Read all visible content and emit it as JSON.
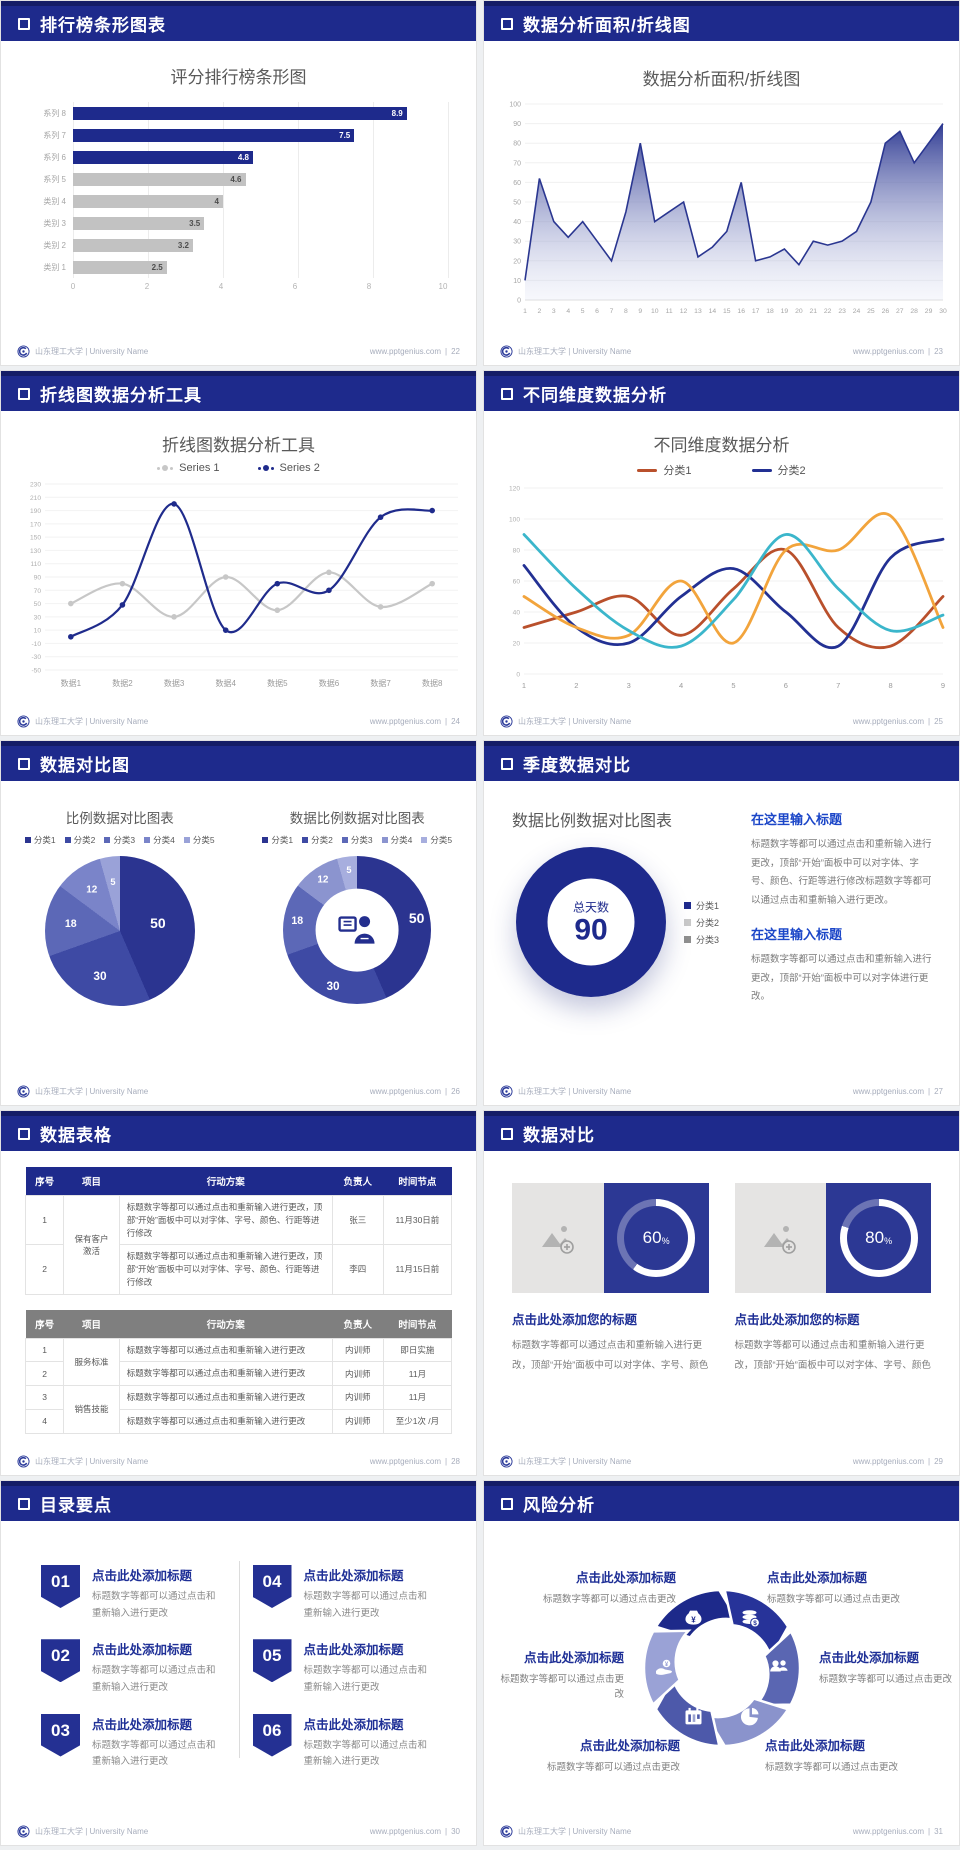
{
  "footer": {
    "org_label": "山东理工大学 | University Name",
    "site": "www.pptgenius.com",
    "separator": "|"
  },
  "slides": [
    {
      "header": "排行榜条形图表",
      "page": "22"
    },
    {
      "header": "数据分析面积/折线图",
      "page": "23"
    },
    {
      "header": "折线图数据分析工具",
      "page": "24"
    },
    {
      "header": "不同维度数据分析",
      "page": "25"
    },
    {
      "header": "数据对比图",
      "page": "26"
    },
    {
      "header": "季度数据对比",
      "page": "27",
      "blocks": [
        {
          "heading": "在这里输入标题",
          "body": "标题数字等都可以通过点击和重新输入进行更改，顶部“开始”面板中可以对字体、字号、颜色、行距等进行修改标题数字等都可以通过点击和重新输入进行更改。"
        },
        {
          "heading": "在这里输入标题",
          "body": "标题数字等都可以通过点击和重新输入进行更改，顶部“开始”面板中可以对字体进行更改。"
        }
      ]
    },
    {
      "header": "数据表格",
      "page": "28",
      "tables": [
        {
          "header_bg": "#1e2a8c",
          "headers": [
            "序号",
            "项目",
            "行动方案",
            "负责人",
            "时间节点"
          ],
          "rows": [
            [
              "1",
              {
                "text": "保有客户激活",
                "rowspan": 2
              },
              "标题数字等都可以通过点击和重新输入进行更改，顶部“开始”面板中可以对字体、字号、颜色、行距等进行修改",
              "张三",
              "11月30日前"
            ],
            [
              "2",
              null,
              "标题数字等都可以通过点击和重新输入进行更改，顶部“开始”面板中可以对字体、字号、颜色、行距等进行修改",
              "李四",
              "11月15日前"
            ]
          ]
        },
        {
          "header_bg": "#7f7f7f",
          "headers": [
            "序号",
            "项目",
            "行动方案",
            "负责人",
            "时间节点"
          ],
          "rows": [
            [
              "1",
              {
                "text": "服务标准",
                "rowspan": 2
              },
              "标题数字等都可以通过点击和重新输入进行更改",
              "内训师",
              "即日实施"
            ],
            [
              "2",
              null,
              "标题数字等都可以通过点击和重新输入进行更改",
              "内训师",
              "11月"
            ],
            [
              "3",
              {
                "text": "销售技能",
                "rowspan": 2
              },
              "标题数字等都可以通过点击和重新输入进行更改",
              "内训师",
              "11月"
            ],
            [
              "4",
              null,
              "标题数字等都可以通过点击和重新输入进行更改",
              "内训师",
              "至少1次 /月"
            ]
          ]
        }
      ]
    },
    {
      "header": "数据对比",
      "page": "29",
      "cards": [
        {
          "percent": "60",
          "unit": "%",
          "heading": "点击此处添加您的标题",
          "body": "标题数字等都可以通过点击和重新输入进行更改，顶部“开始”面板中可以对字体、字号、颜色"
        },
        {
          "percent": "80",
          "unit": "%",
          "heading": "点击此处添加您的标题",
          "body": "标题数字等都可以通过点击和重新输入进行更改，顶部“开始”面板中可以对字体、字号、颜色"
        }
      ]
    },
    {
      "header": "目录要点",
      "page": "30",
      "items": [
        {
          "num": "01",
          "heading": "点击此处添加标题",
          "body": "标题数字等都可以通过点击和重新输入进行更改"
        },
        {
          "num": "02",
          "heading": "点击此处添加标题",
          "body": "标题数字等都可以通过点击和重新输入进行更改"
        },
        {
          "num": "03",
          "heading": "点击此处添加标题",
          "body": "标题数字等都可以通过点击和重新输入进行更改"
        },
        {
          "num": "04",
          "heading": "点击此处添加标题",
          "body": "标题数字等都可以通过点击和重新输入进行更改"
        },
        {
          "num": "05",
          "heading": "点击此处添加标题",
          "body": "标题数字等都可以通过点击和重新输入进行更改"
        },
        {
          "num": "06",
          "heading": "点击此处添加标题",
          "body": "标题数字等都可以通过点击和重新输入进行更改"
        }
      ]
    },
    {
      "header": "风险分析",
      "page": "31",
      "labels": [
        {
          "heading": "点击此处添加标题",
          "body": "标题数字等都可以通过点击更改"
        },
        {
          "heading": "点击此处添加标题",
          "body": "标题数字等都可以通过点击更改"
        },
        {
          "heading": "点击此处添加标题",
          "body": "标题数字等都可以通过点击更改"
        },
        {
          "heading": "点击此处添加标题",
          "body": "标题数字等都可以通过点击更改"
        },
        {
          "heading": "点击此处添加标题",
          "body": "标题数字等都可以通过点击更改"
        },
        {
          "heading": "点击此处添加标题",
          "body": "标题数字等都可以通过点击更改"
        }
      ],
      "icons": [
        "money-bag-icon",
        "coins-icon",
        "people-icon",
        "pie-chart-icon",
        "calendar-icon",
        "hand-money-icon"
      ],
      "wheel_colors": [
        "#1d298a",
        "#273399",
        "#5a66b2",
        "#8a93cc",
        "#4d59aa",
        "#9aa2d6"
      ]
    }
  ],
  "chart_data": [
    {
      "type": "bar",
      "orientation": "horizontal",
      "title": "评分排行榜条形图",
      "categories": [
        "系列 8",
        "系列 7",
        "系列 6",
        "系列 5",
        "类别 4",
        "类别 3",
        "类别 2",
        "类别 1"
      ],
      "values": [
        8.9,
        7.5,
        4.8,
        4.6,
        4,
        3.5,
        3.2,
        2.5
      ],
      "bar_colors": [
        "#1e2a8c",
        "#1e2a8c",
        "#1e2a8c",
        "#c2c2c2",
        "#c2c2c2",
        "#c2c2c2",
        "#c2c2c2",
        "#c2c2c2"
      ],
      "value_label_colors": [
        "#ffffff",
        "#ffffff",
        "#ffffff",
        "#4d4d4d",
        "#4d4d4d",
        "#4d4d4d",
        "#4d4d4d",
        "#4d4d4d"
      ],
      "xlim": [
        0,
        10
      ],
      "xticks": [
        0,
        2,
        4,
        6,
        8,
        10
      ],
      "grid": true
    },
    {
      "type": "area",
      "title": "数据分析面积/折线图",
      "x": [
        1,
        2,
        3,
        4,
        5,
        6,
        7,
        8,
        9,
        10,
        11,
        12,
        13,
        14,
        15,
        16,
        17,
        18,
        19,
        20,
        21,
        22,
        23,
        24,
        25,
        26,
        27,
        28,
        29,
        30
      ],
      "values": [
        10,
        62,
        40,
        32,
        40,
        30,
        20,
        45,
        80,
        40,
        45,
        50,
        22,
        27,
        35,
        60,
        20,
        22,
        26,
        18,
        30,
        28,
        30,
        35,
        50,
        80,
        86,
        70,
        80,
        90
      ],
      "ylim": [
        0,
        100
      ],
      "yticks": [
        0,
        10,
        20,
        30,
        40,
        50,
        60,
        70,
        80,
        90,
        100
      ],
      "color": "#2a3690",
      "grid": true
    },
    {
      "type": "line",
      "title": "折线图数据分析工具",
      "categories": [
        "数据1",
        "数据2",
        "数据3",
        "数据4",
        "数据5",
        "数据6",
        "数据7",
        "数据8"
      ],
      "series": [
        {
          "name": "Series 1",
          "color": "#c7c7c7",
          "values": [
            50,
            80,
            30,
            90,
            40,
            97,
            45,
            80
          ]
        },
        {
          "name": "Series 2",
          "color": "#1f2b8c",
          "values": [
            0,
            48,
            200,
            10,
            80,
            70,
            180,
            190
          ]
        }
      ],
      "ylim": [
        -50,
        230
      ],
      "yticks": [
        230,
        210,
        190,
        170,
        150,
        130,
        110,
        90,
        70,
        50,
        30,
        10,
        -10,
        -30,
        -50
      ],
      "smooth": true,
      "markers": true,
      "legend_position": "top",
      "grid": true
    },
    {
      "type": "line",
      "title": "不同维度数据分析",
      "x": [
        1,
        2,
        3,
        4,
        5,
        6,
        7,
        8,
        9
      ],
      "legend": [
        {
          "label": "分类1",
          "color": "#b9502c"
        },
        {
          "label": "分类2",
          "color": "#223093"
        }
      ],
      "series": [
        {
          "name": "分类1",
          "color": "#b9502c",
          "values": [
            30,
            40,
            50,
            25,
            55,
            80,
            30,
            18,
            50
          ]
        },
        {
          "name": "分类2",
          "color": "#223093",
          "values": [
            70,
            30,
            20,
            50,
            68,
            40,
            18,
            75,
            87
          ]
        },
        {
          "name": "",
          "color": "#f2a43c",
          "values": [
            50,
            30,
            25,
            60,
            20,
            80,
            80,
            102,
            30
          ]
        },
        {
          "name": "",
          "color": "#3bb6cb",
          "values": [
            90,
            55,
            28,
            18,
            48,
            90,
            55,
            28,
            38
          ]
        }
      ],
      "ylim": [
        0,
        120
      ],
      "yticks": [
        0,
        20,
        40,
        60,
        80,
        100,
        120
      ],
      "smooth": true,
      "markers": false,
      "legend_position": "top",
      "grid": true
    },
    {
      "type": "pie",
      "title": "比例数据对比图表",
      "labels": [
        "分类1",
        "分类2",
        "分类3",
        "分类4",
        "分类5"
      ],
      "values": [
        50,
        30,
        18,
        12,
        5
      ],
      "colors": [
        "#2b3490",
        "#3e4aa4",
        "#5c68b7",
        "#7a84c9",
        "#9aa2d8"
      ]
    },
    {
      "type": "donut",
      "title": "数据比例数据对比图表",
      "labels": [
        "分类1",
        "分类2",
        "分类3",
        "分类4",
        "分类5"
      ],
      "values": [
        50,
        30,
        18,
        12,
        5
      ],
      "colors": [
        "#2b3490",
        "#3e4aa4",
        "#5c68b7",
        "#8b94cf",
        "#a7aede"
      ],
      "center_icon": "presenter-icon"
    },
    {
      "type": "donut",
      "title": "数据比例数据对比图表",
      "center_label": "总天数",
      "center_value": "90",
      "labels": [
        "分类1",
        "分类2",
        "分类3"
      ],
      "values": [
        55,
        25,
        20
      ],
      "colors": [
        "#1e2a8c",
        "#c9c9c9",
        "#8f8f8f"
      ],
      "start_angle": 240
    },
    {
      "type": "ring",
      "values": [
        60,
        80
      ],
      "unit": "%",
      "ring_color": "#ffffff",
      "track_color": "rgba(255,255,255,0.3)",
      "box_color": "#2c3894"
    }
  ]
}
